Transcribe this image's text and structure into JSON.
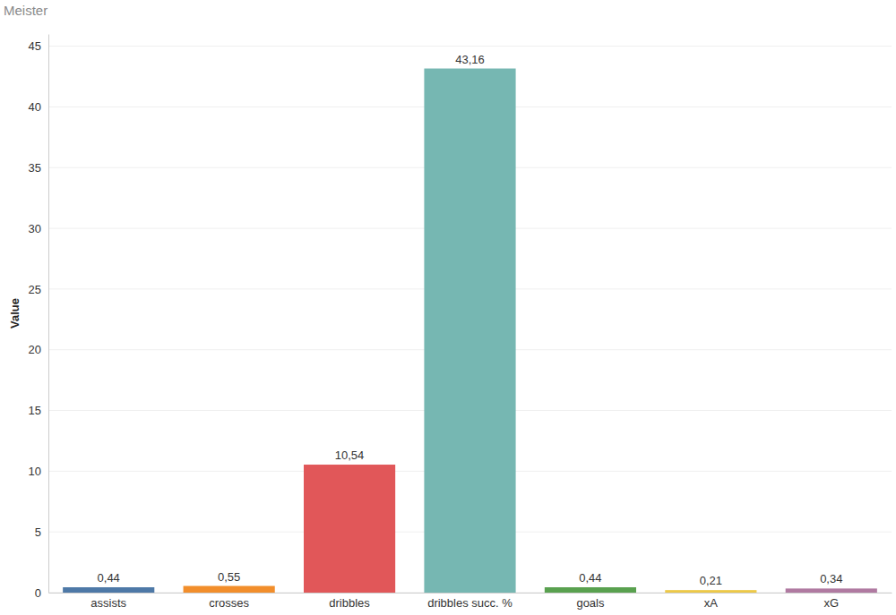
{
  "chart_data": {
    "type": "bar",
    "title": "Meister",
    "y_label": "Value",
    "categories": [
      "assists",
      "crosses",
      "dribbles",
      "dribbles succ. %",
      "goals",
      "xA",
      "xG"
    ],
    "values": [
      0.44,
      0.55,
      10.54,
      43.16,
      0.44,
      0.21,
      0.34
    ],
    "value_labels": [
      "0,44",
      "0,55",
      "10,54",
      "43,16",
      "0,44",
      "0,21",
      "0,34"
    ],
    "colors": [
      "#4e79a7",
      "#f28e2b",
      "#e15759",
      "#76b7b2",
      "#59a14f",
      "#edc948",
      "#b07aa1"
    ],
    "ylim": [
      0,
      46
    ],
    "yticks": [
      0,
      5,
      10,
      15,
      20,
      25,
      30,
      35,
      40,
      45
    ],
    "grid": true,
    "data_labels": true
  }
}
